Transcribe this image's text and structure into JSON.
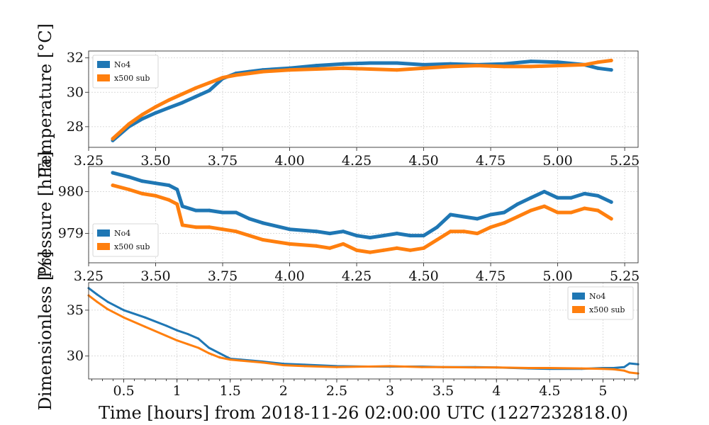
{
  "chart_data": [
    {
      "type": "line",
      "ylabel": "Temperature [°C]",
      "xlim": [
        3.25,
        5.3
      ],
      "ylim": [
        26.8,
        32.4
      ],
      "xticks": [
        "3.25",
        "3.50",
        "3.75",
        "4.00",
        "4.25",
        "4.50",
        "4.75",
        "5.00",
        "5.25"
      ],
      "yticks": [
        "28",
        "30",
        "32"
      ],
      "grid": true,
      "legend_position": "upper-left",
      "series": [
        {
          "name": "No4",
          "color": "#1f77b4",
          "x": [
            3.34,
            3.4,
            3.45,
            3.5,
            3.55,
            3.6,
            3.65,
            3.7,
            3.75,
            3.8,
            3.85,
            3.9,
            4.0,
            4.1,
            4.2,
            4.3,
            4.4,
            4.5,
            4.6,
            4.7,
            4.8,
            4.9,
            5.0,
            5.1,
            5.15,
            5.2
          ],
          "y": [
            27.2,
            28.0,
            28.45,
            28.8,
            29.1,
            29.4,
            29.75,
            30.1,
            30.8,
            31.1,
            31.2,
            31.3,
            31.4,
            31.55,
            31.65,
            31.7,
            31.7,
            31.6,
            31.65,
            31.6,
            31.65,
            31.8,
            31.75,
            31.6,
            31.4,
            31.3
          ]
        },
        {
          "name": "x500 sub",
          "color": "#ff7f0e",
          "x": [
            3.34,
            3.4,
            3.45,
            3.5,
            3.55,
            3.6,
            3.65,
            3.7,
            3.75,
            3.8,
            3.85,
            3.9,
            4.0,
            4.1,
            4.2,
            4.3,
            4.4,
            4.5,
            4.6,
            4.7,
            4.8,
            4.9,
            5.0,
            5.1,
            5.15,
            5.2
          ],
          "y": [
            27.3,
            28.15,
            28.7,
            29.15,
            29.55,
            29.9,
            30.25,
            30.55,
            30.85,
            31.0,
            31.1,
            31.2,
            31.3,
            31.35,
            31.4,
            31.35,
            31.3,
            31.4,
            31.5,
            31.55,
            31.5,
            31.5,
            31.55,
            31.6,
            31.75,
            31.85
          ]
        }
      ]
    },
    {
      "type": "line",
      "ylabel": "Pressure [hPa]",
      "xlim": [
        3.25,
        5.3
      ],
      "ylim": [
        978.3,
        980.6
      ],
      "xticks": [
        "3.25",
        "3.50",
        "3.75",
        "4.00",
        "4.25",
        "4.50",
        "4.75",
        "5.00",
        "5.25"
      ],
      "yticks": [
        "979",
        "980"
      ],
      "grid": true,
      "legend_position": "lower-left",
      "series": [
        {
          "name": "No4",
          "color": "#1f77b4",
          "x": [
            3.34,
            3.4,
            3.45,
            3.5,
            3.55,
            3.58,
            3.6,
            3.65,
            3.7,
            3.75,
            3.8,
            3.85,
            3.9,
            4.0,
            4.1,
            4.15,
            4.2,
            4.25,
            4.3,
            4.35,
            4.4,
            4.45,
            4.5,
            4.55,
            4.6,
            4.65,
            4.7,
            4.75,
            4.8,
            4.85,
            4.9,
            4.95,
            5.0,
            5.05,
            5.1,
            5.15,
            5.2
          ],
          "y": [
            980.45,
            980.35,
            980.25,
            980.2,
            980.15,
            980.05,
            979.65,
            979.55,
            979.55,
            979.5,
            979.5,
            979.35,
            979.25,
            979.1,
            979.05,
            979.0,
            979.05,
            978.95,
            978.9,
            978.95,
            979.0,
            978.95,
            978.95,
            979.15,
            979.45,
            979.4,
            979.35,
            979.45,
            979.5,
            979.7,
            979.85,
            980.0,
            979.85,
            979.85,
            979.95,
            979.9,
            979.75
          ]
        },
        {
          "name": "x500 sub",
          "color": "#ff7f0e",
          "x": [
            3.34,
            3.4,
            3.45,
            3.5,
            3.55,
            3.58,
            3.6,
            3.65,
            3.7,
            3.75,
            3.8,
            3.85,
            3.9,
            4.0,
            4.1,
            4.15,
            4.2,
            4.25,
            4.3,
            4.35,
            4.4,
            4.45,
            4.5,
            4.55,
            4.6,
            4.65,
            4.7,
            4.75,
            4.8,
            4.85,
            4.9,
            4.95,
            5.0,
            5.05,
            5.1,
            5.15,
            5.2
          ],
          "y": [
            980.15,
            980.05,
            979.95,
            979.9,
            979.8,
            979.7,
            979.2,
            979.15,
            979.15,
            979.1,
            979.05,
            978.95,
            978.85,
            978.75,
            978.7,
            978.65,
            978.75,
            978.6,
            978.55,
            978.6,
            978.65,
            978.6,
            978.65,
            978.85,
            979.05,
            979.05,
            979.0,
            979.15,
            979.25,
            979.4,
            979.55,
            979.65,
            979.5,
            979.5,
            979.6,
            979.55,
            979.35
          ]
        }
      ]
    },
    {
      "type": "line",
      "ylabel": "Dimensionless [%]",
      "xlabel": "Time [hours] from 2018-11-26 02:00:00 UTC (1227232818.0)",
      "xlim": [
        0.17,
        5.33
      ],
      "ylim": [
        27.5,
        38.0
      ],
      "xticks": [
        "0.5",
        "1",
        "1.5",
        "2",
        "2.5",
        "3",
        "3.5",
        "4",
        "4.5",
        "5"
      ],
      "yticks": [
        "30",
        "35"
      ],
      "grid": true,
      "legend_position": "upper-right",
      "series": [
        {
          "name": "No4",
          "color": "#1f77b4",
          "x": [
            0.17,
            0.25,
            0.35,
            0.5,
            0.7,
            0.9,
            1.0,
            1.1,
            1.2,
            1.3,
            1.4,
            1.5,
            1.6,
            1.8,
            2.0,
            2.2,
            2.5,
            2.8,
            3.0,
            3.3,
            3.5,
            3.8,
            4.0,
            4.3,
            4.5,
            4.8,
            5.0,
            5.1,
            5.2,
            5.25,
            5.33
          ],
          "y": [
            37.4,
            36.7,
            35.9,
            35.0,
            34.2,
            33.3,
            32.8,
            32.4,
            31.9,
            30.9,
            30.3,
            29.7,
            29.6,
            29.4,
            29.15,
            29.05,
            28.9,
            28.85,
            28.85,
            28.85,
            28.8,
            28.8,
            28.75,
            28.65,
            28.6,
            28.6,
            28.7,
            28.7,
            28.8,
            29.2,
            29.1
          ]
        },
        {
          "name": "x500 sub",
          "color": "#ff7f0e",
          "x": [
            0.17,
            0.25,
            0.35,
            0.5,
            0.7,
            0.9,
            1.0,
            1.1,
            1.2,
            1.3,
            1.4,
            1.5,
            1.6,
            1.8,
            2.0,
            2.2,
            2.5,
            2.8,
            3.0,
            3.3,
            3.5,
            3.8,
            4.0,
            4.3,
            4.5,
            4.8,
            5.0,
            5.1,
            5.2,
            5.25,
            5.33
          ],
          "y": [
            36.6,
            35.9,
            35.1,
            34.2,
            33.2,
            32.2,
            31.7,
            31.3,
            30.9,
            30.3,
            29.85,
            29.6,
            29.5,
            29.3,
            29.0,
            28.9,
            28.8,
            28.85,
            28.9,
            28.8,
            28.8,
            28.75,
            28.75,
            28.7,
            28.7,
            28.65,
            28.6,
            28.55,
            28.4,
            28.2,
            28.1
          ]
        }
      ]
    }
  ]
}
